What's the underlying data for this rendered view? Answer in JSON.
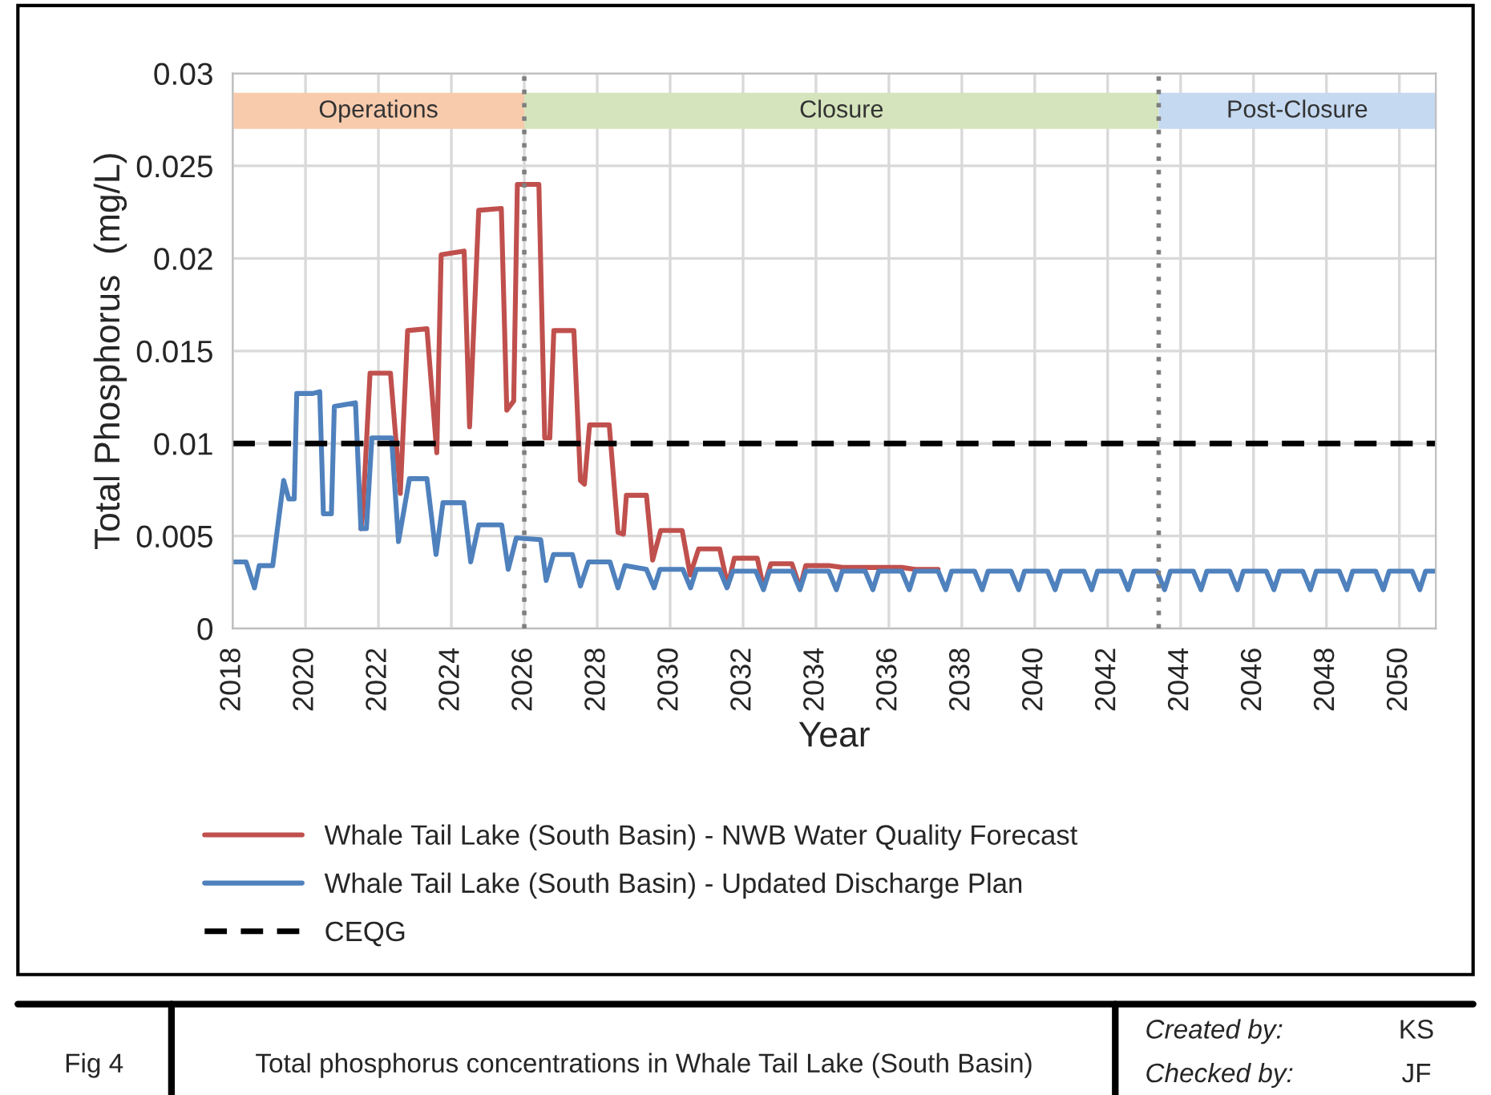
{
  "chart_data": {
    "type": "line",
    "xlabel": "Year",
    "ylabel": "Total Phosphorus  (mg/L)",
    "xlim": [
      2018,
      2051
    ],
    "ylim": [
      0,
      0.03
    ],
    "xticks": [
      2018,
      2020,
      2022,
      2024,
      2026,
      2028,
      2030,
      2032,
      2034,
      2036,
      2038,
      2040,
      2042,
      2044,
      2046,
      2048,
      2050
    ],
    "yticks": [
      0,
      0.005,
      0.01,
      0.015,
      0.02,
      0.025,
      0.03
    ],
    "grid": true,
    "legend": "bottom",
    "marker": "none",
    "series": [
      {
        "name": "Whale Tail Lake (South Basin) - NWB Water Quality Forecast",
        "color": "#c0504d",
        "line_style": "solid",
        "x": [
          2021.52,
          2021.57,
          2021.77,
          2022.33,
          2022.6,
          2022.8,
          2023.33,
          2023.6,
          2023.72,
          2024.35,
          2024.5,
          2024.75,
          2025.37,
          2025.52,
          2025.71,
          2025.81,
          2026.4,
          2026.56,
          2026.7,
          2026.81,
          2027.36,
          2027.54,
          2027.65,
          2027.79,
          2028.33,
          2028.57,
          2028.72,
          2028.8,
          2029.35,
          2029.52,
          2029.74,
          2030.33,
          2030.55,
          2030.78,
          2031.36,
          2031.58,
          2031.76,
          2032.39,
          2032.56,
          2032.76,
          2033.34,
          2033.56,
          2033.72,
          2034.35,
          2034.56,
          2034.72,
          2035.35,
          2035.56,
          2035.72,
          2036.35,
          2036.56,
          2036.72,
          2037.35
        ],
        "values": [
          0.0054,
          0.0062,
          0.0138,
          0.0138,
          0.0073,
          0.0161,
          0.0162,
          0.0095,
          0.0202,
          0.0204,
          0.0109,
          0.0226,
          0.0227,
          0.0118,
          0.0123,
          0.024,
          0.024,
          0.0103,
          0.0103,
          0.0161,
          0.0161,
          0.008,
          0.0078,
          0.011,
          0.011,
          0.0052,
          0.0051,
          0.0072,
          0.0072,
          0.0037,
          0.0053,
          0.0053,
          0.0029,
          0.0043,
          0.0043,
          0.0023,
          0.0038,
          0.0038,
          0.0022,
          0.0035,
          0.0035,
          0.0022,
          0.0034,
          0.0034,
          null,
          0.0033,
          0.0033,
          null,
          0.0033,
          0.0033,
          null,
          0.0032,
          0.0032
        ]
      },
      {
        "name": "Whale Tail Lake (South Basin) - Updated Discharge Plan",
        "color": "#4f81bd",
        "line_style": "solid",
        "x": [
          2018,
          2018.37,
          2018.6,
          2018.73,
          2019.1,
          2019.4,
          2019.54,
          2019.69,
          2019.76,
          2020.2,
          2020.39,
          2020.49,
          2020.71,
          2020.79,
          2021.37,
          2021.52,
          2021.67,
          2021.82,
          2022.36,
          2022.55,
          2022.85,
          2023.33,
          2023.58,
          2023.77,
          2024.34,
          2024.53,
          2024.75,
          2025.38,
          2025.56,
          2025.78,
          2026.45,
          2026.6,
          2026.8,
          2027.32,
          2027.54,
          2027.76,
          2028.35,
          2028.57,
          2028.76,
          2029.35,
          2029.56,
          2029.72,
          2030.35,
          2030.56,
          2030.72,
          2031.35,
          2031.56,
          2031.72,
          2032.35,
          2032.56,
          2032.72,
          2033.35,
          2033.56,
          2033.72,
          2034.35,
          2034.56,
          2034.72,
          2035.35,
          2035.56,
          2035.72,
          2036.35,
          2036.56,
          2036.72,
          2037.35,
          2037.56,
          2037.72,
          2038.35,
          2038.56,
          2038.72,
          2039.35,
          2039.56,
          2039.72,
          2040.35,
          2040.56,
          2040.72,
          2041.35,
          2041.56,
          2041.72,
          2042.35,
          2042.56,
          2042.72,
          2043.35,
          2043.56,
          2043.72,
          2044.35,
          2044.56,
          2044.72,
          2045.35,
          2045.56,
          2045.72,
          2046.35,
          2046.56,
          2046.72,
          2047.35,
          2047.56,
          2047.72,
          2048.35,
          2048.56,
          2048.72,
          2049.35,
          2049.56,
          2049.72,
          2050.35,
          2050.56,
          2050.72,
          2051
        ],
        "values": [
          0.0036,
          0.0036,
          0.0022,
          0.0034,
          0.0034,
          0.008,
          0.007,
          0.007,
          0.0127,
          0.0127,
          0.0128,
          0.0062,
          0.0062,
          0.012,
          0.0122,
          0.0054,
          0.0054,
          0.0103,
          0.0103,
          0.0047,
          0.0081,
          0.0081,
          0.004,
          0.0068,
          0.0068,
          0.0036,
          0.0056,
          0.0056,
          0.0032,
          0.0049,
          0.0048,
          0.0026,
          0.004,
          0.004,
          0.0023,
          0.0036,
          0.0036,
          0.0022,
          0.0034,
          0.0032,
          0.0022,
          0.0032,
          0.0032,
          0.0022,
          0.0032,
          0.0032,
          0.0022,
          0.0031,
          0.0031,
          0.0021,
          0.0031,
          0.0031,
          0.0021,
          0.0031,
          0.0031,
          0.0021,
          0.0031,
          0.0031,
          0.0021,
          0.0031,
          0.0031,
          0.0021,
          0.0031,
          0.0031,
          0.0021,
          0.0031,
          0.0031,
          0.0021,
          0.0031,
          0.0031,
          0.0021,
          0.0031,
          0.0031,
          0.0021,
          0.0031,
          0.0031,
          0.0021,
          0.0031,
          0.0031,
          0.0021,
          0.0031,
          0.0031,
          0.0021,
          0.0031,
          0.0031,
          0.0021,
          0.0031,
          0.0031,
          0.0021,
          0.0031,
          0.0031,
          0.0021,
          0.0031,
          0.0031,
          0.0021,
          0.0031,
          0.0031,
          0.0021,
          0.0031,
          0.0031,
          0.0021,
          0.0031,
          0.0031,
          0.0021,
          0.0031,
          0.0031
        ]
      },
      {
        "name": "CEQG",
        "color": "#000000",
        "line_style": "dashed",
        "x": [
          2018,
          2051
        ],
        "values": [
          0.01,
          0.01
        ]
      }
    ],
    "ref_lines": [
      {
        "axis": "x",
        "value": 2026,
        "color": "#7f7f7f",
        "line_style": "dotted"
      },
      {
        "axis": "x",
        "value": 2043.4,
        "color": "#7f7f7f",
        "line_style": "dotted"
      }
    ],
    "bands": [
      {
        "axis": "x",
        "from": 2018,
        "to": 2026,
        "label": "Operations",
        "color": "#f8cbad"
      },
      {
        "axis": "x",
        "from": 2026,
        "to": 2043.4,
        "label": "Closure",
        "color": "#d5e4bc"
      },
      {
        "axis": "x",
        "from": 2043.4,
        "to": 2051,
        "label": "Post-Closure",
        "color": "#c5d9f1"
      }
    ],
    "annotations": [
      "Fig 4",
      "Total phosphorus concentrations in Whale Tail Lake (South Basin)",
      "Created by:",
      "KS",
      "Checked by:",
      "JF"
    ]
  }
}
